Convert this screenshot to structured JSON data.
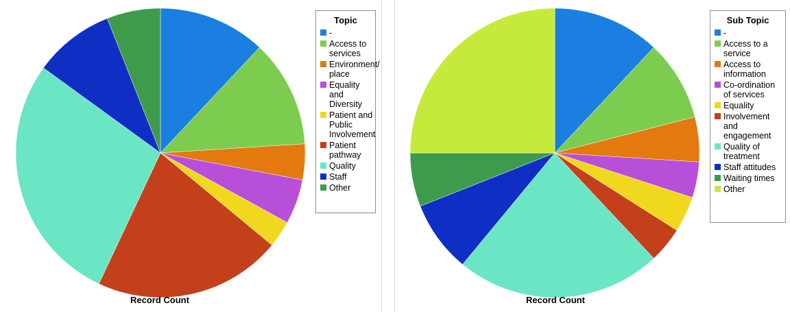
{
  "chart_data": [
    {
      "type": "pie",
      "xlabel": "Record Count",
      "legend_title": "Topic",
      "legend_placement": "right",
      "labels": [
        "-",
        "Access to services",
        "Environment/ place",
        "Equality and Diversity",
        "Patient and Public Involvement",
        "Patient pathway",
        "Quality",
        "Staff",
        "Other"
      ],
      "legend_labels": [
        "-",
        "Access to\nservices",
        "Environment/\nplace",
        "Equality and\nDiversity",
        "Patient and\nPublic\nInvolvement",
        "Patient\npathway",
        "Quality",
        "Staff",
        "Other"
      ],
      "values": [
        12,
        12,
        4,
        5,
        3,
        21,
        28,
        9,
        6
      ],
      "colors": [
        "#1a7fe0",
        "#7ccd4f",
        "#e3790f",
        "#b84fd9",
        "#f0d81e",
        "#c4401a",
        "#6be6c4",
        "#0f2fc4",
        "#3f9b4c"
      ]
    },
    {
      "type": "pie",
      "xlabel": "Record Count",
      "legend_title": "Sub Topic",
      "legend_placement": "right",
      "labels": [
        "-",
        "Access to a service",
        "Access to information",
        "Co-ordination of services",
        "Equality",
        "Involvement and engagement",
        "Quality of treatment",
        "Staff attitudes",
        "Waiting times",
        "Other"
      ],
      "legend_labels": [
        "-",
        "Access to a\nservice",
        "Access to\ninformation",
        "Co-ordination\nof services",
        "Equality",
        "Involvement\nand\nengagement",
        "Quality of\ntreatment",
        "Staff attitudes",
        "Waiting times",
        "Other"
      ],
      "values": [
        12,
        9,
        5,
        4,
        4,
        4,
        23,
        8,
        6,
        25
      ],
      "colors": [
        "#1a7fe0",
        "#7ccd4f",
        "#e3790f",
        "#b84fd9",
        "#f0d81e",
        "#c4401a",
        "#6be6c4",
        "#0f2fc4",
        "#3f9b4c",
        "#c6ea3c"
      ]
    }
  ]
}
